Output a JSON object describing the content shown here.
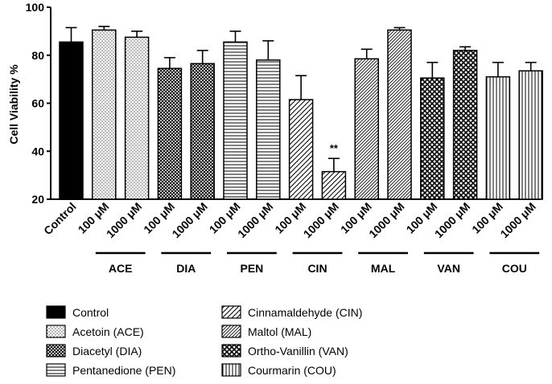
{
  "chart_data": {
    "type": "bar",
    "ylabel": "Cell Viability %",
    "xlabel": "",
    "ylim": [
      20,
      100
    ],
    "yticks": [
      "20",
      "40",
      "60",
      "80",
      "100"
    ],
    "bars": [
      {
        "label": "Control",
        "value": 85.5,
        "error": 6.0,
        "group": "Control"
      },
      {
        "label": "100 μM",
        "value": 90.5,
        "error": 1.5,
        "group": "ACE"
      },
      {
        "label": "1000 μM",
        "value": 87.5,
        "error": 2.5,
        "group": "ACE"
      },
      {
        "label": "100 μM",
        "value": 74.5,
        "error": 4.5,
        "group": "DIA"
      },
      {
        "label": "1000 μM",
        "value": 76.5,
        "error": 5.5,
        "group": "DIA"
      },
      {
        "label": "100 μM",
        "value": 85.5,
        "error": 4.5,
        "group": "PEN"
      },
      {
        "label": "1000 μM",
        "value": 78.0,
        "error": 8.0,
        "group": "PEN"
      },
      {
        "label": "100 μM",
        "value": 61.5,
        "error": 10.0,
        "group": "CIN"
      },
      {
        "label": "1000 μM",
        "value": 31.5,
        "error": 5.5,
        "group": "CIN",
        "annotation": "**"
      },
      {
        "label": "100 μM",
        "value": 78.5,
        "error": 4.0,
        "group": "MAL"
      },
      {
        "label": "1000 μM",
        "value": 90.5,
        "error": 1.0,
        "group": "MAL"
      },
      {
        "label": "100 μM",
        "value": 70.5,
        "error": 6.5,
        "group": "VAN"
      },
      {
        "label": "1000 μM",
        "value": 82.0,
        "error": 1.5,
        "group": "VAN"
      },
      {
        "label": "100 μM",
        "value": 71.0,
        "error": 6.0,
        "group": "COU"
      },
      {
        "label": "1000 μM",
        "value": 73.5,
        "error": 3.5,
        "group": "COU"
      }
    ],
    "groups": [
      "ACE",
      "DIA",
      "PEN",
      "CIN",
      "MAL",
      "VAN",
      "COU"
    ],
    "legend": [
      {
        "key": "Control",
        "label": "Control"
      },
      {
        "key": "ACE",
        "label": "Acetoin (ACE)"
      },
      {
        "key": "DIA",
        "label": "Diacetyl (DIA)"
      },
      {
        "key": "PEN",
        "label": "Pentanedione (PEN)"
      },
      {
        "key": "CIN",
        "label": "Cinnamaldehyde (CIN)"
      },
      {
        "key": "MAL",
        "label": "Maltol (MAL)"
      },
      {
        "key": "VAN",
        "label": "Ortho-Vanillin (VAN)"
      },
      {
        "key": "COU",
        "label": "Courmarin (COU)"
      }
    ]
  }
}
